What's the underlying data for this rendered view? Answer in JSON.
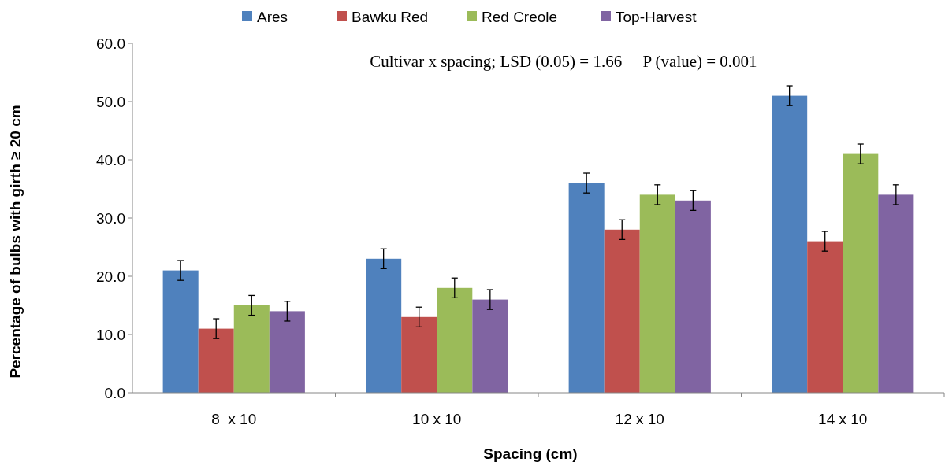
{
  "chart_data": {
    "type": "bar",
    "xlabel": "Spacing (cm)",
    "ylabel": "Percentage of bulbs with girth ≥ 20 cm",
    "annotations": [
      "Cultivar x spacing; LSD (0.05) = 1.66     P (value) = 0.001"
    ],
    "categories": [
      "8  x 10",
      "10 x 10",
      "12 x 10",
      "14 x 10"
    ],
    "series": [
      {
        "name": "Ares",
        "color": "#4f81bd",
        "values": [
          21,
          23,
          36,
          51
        ],
        "errors": [
          1.7,
          1.7,
          1.7,
          1.7
        ]
      },
      {
        "name": "Bawku Red",
        "color": "#c0504d",
        "values": [
          11,
          13,
          28,
          26
        ],
        "errors": [
          1.7,
          1.7,
          1.7,
          1.7
        ]
      },
      {
        "name": "Red Creole",
        "color": "#9bbb59",
        "values": [
          15,
          18,
          34,
          41
        ],
        "errors": [
          1.7,
          1.7,
          1.7,
          1.7
        ]
      },
      {
        "name": "Top-Harvest",
        "color": "#8064a2",
        "values": [
          14,
          16,
          33,
          34
        ],
        "errors": [
          1.7,
          1.7,
          1.7,
          1.7
        ]
      }
    ],
    "ylim": [
      0,
      60
    ],
    "yticks": [
      {
        "value": 0,
        "label": "0.0"
      },
      {
        "value": 10,
        "label": "10.0"
      },
      {
        "value": 20,
        "label": "20.0"
      },
      {
        "value": 30,
        "label": "30.0"
      },
      {
        "value": 40,
        "label": "40.0"
      },
      {
        "value": 50,
        "label": "50.0"
      },
      {
        "value": 60,
        "label": "60.0"
      }
    ],
    "legend": "top"
  }
}
